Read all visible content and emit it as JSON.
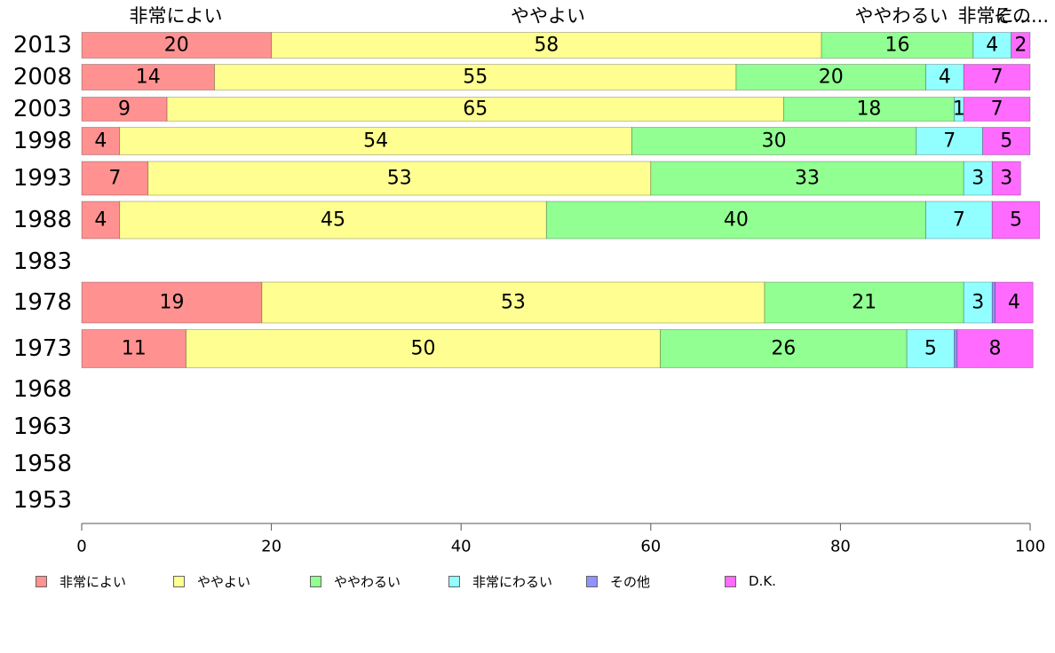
{
  "chart_data": {
    "type": "bar",
    "orientation": "horizontal",
    "stacked": true,
    "title": "",
    "xlabel": "",
    "ylabel": "",
    "xlim": [
      0,
      100
    ],
    "x_ticks": [
      0,
      20,
      40,
      60,
      80,
      100
    ],
    "grid": false,
    "legend_position": "bottom",
    "top_labels": [
      "非常によい",
      "ややよい",
      "ややわるい",
      "非常に...",
      "その..."
    ],
    "categories": [
      "2013",
      "2008",
      "2003",
      "1998",
      "1993",
      "1988",
      "1983",
      "1978",
      "1973",
      "1968",
      "1963",
      "1958",
      "1953"
    ],
    "series": [
      {
        "name": "非常によい",
        "color": "#ff9191",
        "values": [
          20,
          14,
          9,
          4,
          7,
          4,
          null,
          19,
          11,
          null,
          null,
          null,
          null
        ],
        "labels": [
          "20",
          "14",
          "9",
          "4",
          "7",
          "4",
          "",
          "19",
          "11",
          "",
          "",
          "",
          ""
        ]
      },
      {
        "name": "ややよい",
        "color": "#ffff91",
        "values": [
          58,
          55,
          65,
          54,
          53,
          45,
          null,
          53,
          50,
          null,
          null,
          null,
          null
        ],
        "labels": [
          "58",
          "55",
          "65",
          "54",
          "53",
          "45",
          "",
          "53",
          "50",
          "",
          "",
          "",
          ""
        ]
      },
      {
        "name": "ややわるい",
        "color": "#91ff91",
        "values": [
          16,
          20,
          18,
          30,
          33,
          40,
          null,
          21,
          26,
          null,
          null,
          null,
          null
        ],
        "labels": [
          "16",
          "20",
          "18",
          "30",
          "33",
          "40",
          "",
          "21",
          "26",
          "",
          "",
          "",
          ""
        ]
      },
      {
        "name": "非常にわるい",
        "color": "#91ffff",
        "values": [
          4,
          4,
          1,
          7,
          3,
          7,
          null,
          3,
          5,
          null,
          null,
          null,
          null
        ],
        "labels": [
          "4",
          "4",
          "1",
          "7",
          "3",
          "7",
          "",
          "3",
          "5",
          "",
          "",
          "",
          ""
        ]
      },
      {
        "name": "その他",
        "color": "#9191ff",
        "values": [
          0,
          0,
          0,
          0,
          0,
          0,
          null,
          0.3,
          0.3,
          null,
          null,
          null,
          null
        ],
        "labels": [
          "",
          "",
          "",
          "",
          "",
          "",
          "",
          "",
          "",
          "",
          "",
          "",
          ""
        ]
      },
      {
        "name": "D.K.",
        "color": "#ff6bff",
        "values": [
          2,
          7,
          7,
          5,
          3,
          5,
          null,
          4,
          8,
          null,
          null,
          null,
          null
        ],
        "labels": [
          "2",
          "7",
          "7",
          "5",
          "3",
          "5",
          "",
          "4",
          "8",
          "",
          "",
          "",
          ""
        ]
      }
    ]
  }
}
